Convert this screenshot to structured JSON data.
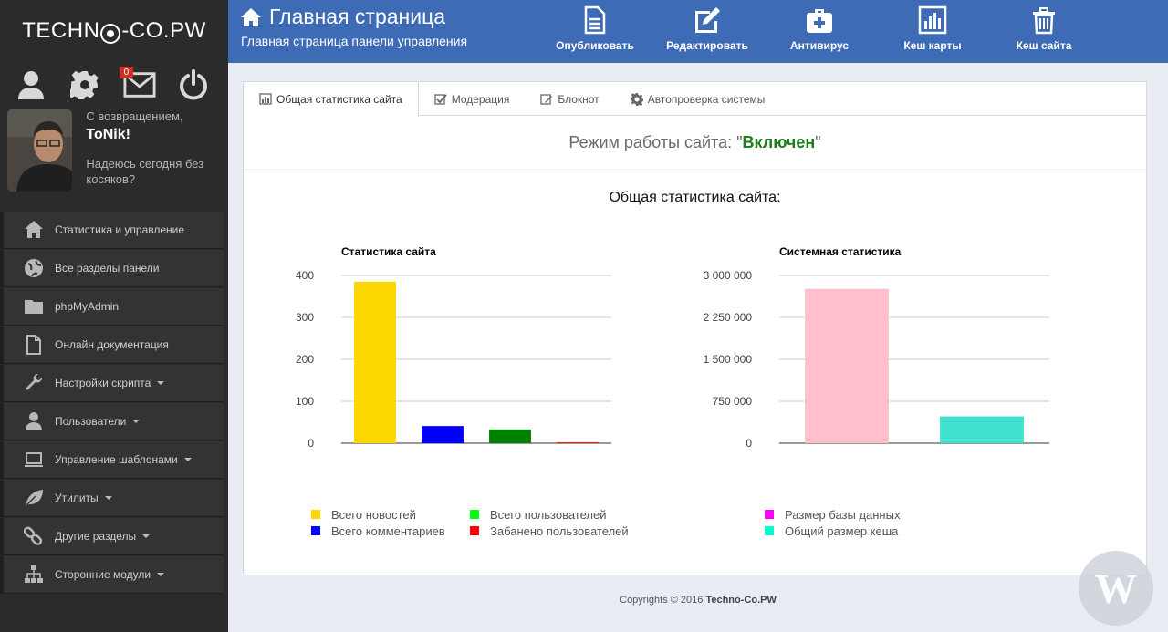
{
  "brand": {
    "logo_prefix": "TECHN",
    "logo_suffix": "-CO.PW"
  },
  "sidebar": {
    "badge_count": "0",
    "welcome": "С возвращением,",
    "username": "ToNik!",
    "wish": "Надеюсь сегодня без косяков?",
    "items": [
      {
        "label": "Статистика и управление",
        "icon": "home-icon",
        "caret": false
      },
      {
        "label": "Все разделы панели",
        "icon": "globe-icon",
        "caret": false
      },
      {
        "label": "phpMyAdmin",
        "icon": "folder-icon",
        "caret": false
      },
      {
        "label": "Онлайн документация",
        "icon": "file-icon",
        "caret": false
      },
      {
        "label": "Настройки скрипта",
        "icon": "wrench-icon",
        "caret": true
      },
      {
        "label": "Пользователи",
        "icon": "user-icon",
        "caret": true
      },
      {
        "label": "Управление шаблонами",
        "icon": "laptop-icon",
        "caret": true
      },
      {
        "label": "Утилиты",
        "icon": "leaf-icon",
        "caret": true
      },
      {
        "label": "Другие разделы",
        "icon": "link-icon",
        "caret": true
      },
      {
        "label": "Сторонние модули",
        "icon": "sitemap-icon",
        "caret": true
      }
    ]
  },
  "header": {
    "title": "Главная страница",
    "subtitle": "Главная страница панели управления",
    "buttons": [
      {
        "label": "Опубликовать",
        "icon": "document-icon"
      },
      {
        "label": "Редактировать",
        "icon": "edit-icon"
      },
      {
        "label": "Антивирус",
        "icon": "medkit-icon"
      },
      {
        "label": "Кеш карты",
        "icon": "bar-chart-icon"
      },
      {
        "label": "Кеш сайта",
        "icon": "trash-icon"
      }
    ]
  },
  "tabs": [
    {
      "label": "Общая статистика сайта",
      "icon": "chart-icon",
      "active": true
    },
    {
      "label": "Модерация",
      "icon": "check-icon",
      "active": false
    },
    {
      "label": "Блокнот",
      "icon": "pencil-icon",
      "active": false
    },
    {
      "label": "Автопроверка системы",
      "icon": "cog-icon",
      "active": false
    }
  ],
  "mode": {
    "prefix": "Режим работы сайта: \"",
    "value": "Включен",
    "suffix": "\""
  },
  "stats_title": "Общая статистика сайта:",
  "chart_data": [
    {
      "type": "bar",
      "title": "Статистика сайта",
      "categories": [
        "Всего новостей",
        "Всего комментариев",
        "Всего пользователей",
        "Забанено пользователей"
      ],
      "values": [
        385,
        41,
        33,
        2
      ],
      "colors": [
        "#ffd700",
        "#0000ff",
        "#008000",
        "#ff0000"
      ],
      "yticks": [
        "0",
        "100",
        "200",
        "300",
        "400"
      ],
      "ylim": [
        0,
        400
      ]
    },
    {
      "type": "bar",
      "title": "Системная статистика",
      "categories": [
        "Размер базы данных",
        "Общий размер кеша"
      ],
      "values": [
        2760000,
        480000
      ],
      "colors": [
        "#ffc0cb",
        "#40e0d0"
      ],
      "legend_colors": [
        "#ff00ff",
        "#00ffcc"
      ],
      "yticks": [
        "0",
        "750 000",
        "1 500 000",
        "2 250 000",
        "3 000 000"
      ],
      "ylim": [
        0,
        3000000
      ]
    }
  ],
  "legend1": {
    "col1": [
      {
        "label": "Всего новостей",
        "color": "#ffd700"
      },
      {
        "label": "Всего комментариев",
        "color": "#0000ff"
      }
    ],
    "col2": [
      {
        "label": "Всего пользователей",
        "color": "#00ff00"
      },
      {
        "label": "Забанено пользователей",
        "color": "#ff0000"
      }
    ]
  },
  "legend2": [
    {
      "label": "Размер базы данных",
      "color": "#ff00ff"
    },
    {
      "label": "Общий размер кеша",
      "color": "#00ffcc"
    }
  ],
  "footer": {
    "prefix": "Copyrights © 2016 ",
    "brand": "Techno-Co.PW"
  },
  "watermark": "W"
}
